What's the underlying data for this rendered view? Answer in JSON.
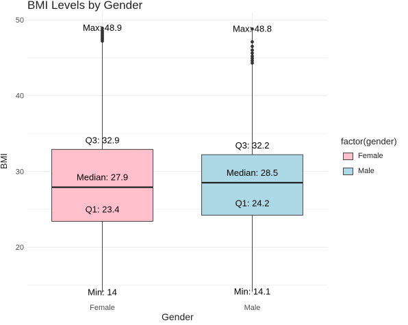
{
  "chart_data": {
    "type": "box",
    "title": "BMI Levels by Gender",
    "xlabel": "Gender",
    "ylabel": "BMI",
    "ylim": [
      13.5,
      51
    ],
    "yticks": [
      20,
      30,
      40,
      50
    ],
    "grid": true,
    "legend": {
      "title": "factor(gender)",
      "placement": "right",
      "entries": [
        "Female",
        "Male"
      ]
    },
    "categories": [
      "Female",
      "Male"
    ],
    "series": [
      {
        "name": "Female",
        "color": "#ffc0cb",
        "min": 14,
        "q1": 23.4,
        "median": 27.9,
        "q3": 32.9,
        "max": 48.9,
        "outliers": [
          47.2,
          47.4,
          47.6,
          47.8,
          48.0,
          48.2,
          48.4,
          48.6,
          48.9
        ],
        "labels": {
          "max": "Max: 48.9",
          "q3": "Q3: 32.9",
          "median": "Median: 27.9",
          "q1": "Q1: 23.4",
          "min": "Min: 14"
        }
      },
      {
        "name": "Male",
        "color": "#add8e6",
        "min": 14.1,
        "q1": 24.2,
        "median": 28.5,
        "q3": 32.2,
        "max": 48.8,
        "outliers": [
          44.3,
          44.6,
          44.9,
          45.2,
          45.6,
          46.0,
          46.5,
          47.1,
          48.8
        ],
        "labels": {
          "max": "Max: 48.8",
          "q3": "Q3: 32.2",
          "median": "Median: 28.5",
          "q1": "Q1: 24.2",
          "min": "Min: 14.1"
        }
      }
    ]
  }
}
